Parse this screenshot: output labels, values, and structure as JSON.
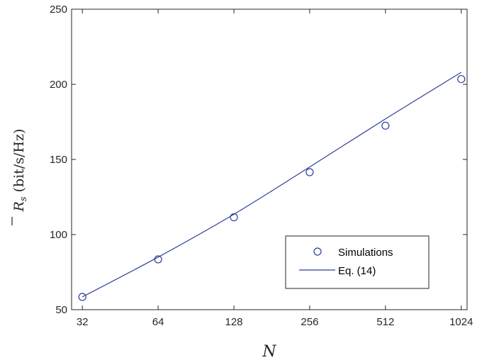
{
  "chart_data": {
    "type": "line",
    "title": "",
    "xlabel": "N",
    "ylabel": {
      "symbol": "R",
      "subscript": "s",
      "unit": "(bit/s/Hz)"
    },
    "x_scale": "log2",
    "xlim": [
      29,
      1080
    ],
    "ylim": [
      50,
      250
    ],
    "xticks": [
      32,
      64,
      128,
      256,
      512,
      1024
    ],
    "xtick_labels": [
      "32",
      "64",
      "128",
      "256",
      "512",
      "1024"
    ],
    "yticks": [
      50,
      100,
      150,
      200,
      250
    ],
    "ytick_labels": [
      "50",
      "100",
      "150",
      "200",
      "250"
    ],
    "grid": false,
    "legend_position": "bottom-right",
    "series": [
      {
        "name": "Simulations",
        "kind": "markers",
        "marker": "circle",
        "color": "#2e3f9e",
        "x": [
          32,
          64,
          128,
          256,
          512,
          1024
        ],
        "y": [
          58.5,
          83.5,
          111.5,
          141.5,
          172.5,
          203.5
        ]
      },
      {
        "name": "Eq. (14)",
        "kind": "line",
        "color": "#2e3f9e",
        "x": [
          32,
          64,
          128,
          256,
          512,
          1024
        ],
        "y": [
          58.5,
          85,
          113.5,
          145,
          177,
          208
        ]
      }
    ]
  }
}
